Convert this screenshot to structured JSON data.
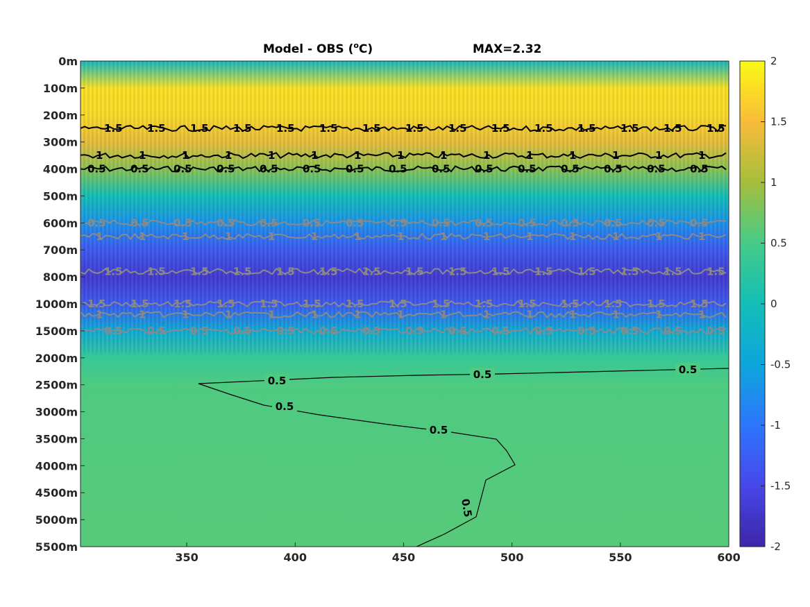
{
  "chart_data": {
    "type": "heatmap",
    "title_left": "Model - OBS (",
    "title_unit_sup": "o",
    "title_unit_end": "C)",
    "title_right": "MAX=2.32",
    "x": {
      "range": [
        301,
        600
      ],
      "ticks": [
        350,
        400,
        450,
        500,
        550,
        600
      ]
    },
    "y": {
      "depth_ticks": [
        "0m",
        "100m",
        "200m",
        "300m",
        "400m",
        "500m",
        "600m",
        "700m",
        "800m",
        "1000m",
        "1500m",
        "2000m",
        "2500m",
        "3000m",
        "3500m",
        "4000m",
        "4500m",
        "5000m",
        "5500m"
      ]
    },
    "colorbar": {
      "range": [
        -2,
        2
      ],
      "ticks": [
        2,
        1.5,
        1,
        0.5,
        0,
        -0.5,
        -1,
        -1.5,
        -2
      ],
      "tick_labels": [
        "2",
        "1.5",
        "1",
        "0.5",
        "0",
        "-0.5",
        "-1",
        "-1.5",
        "-2"
      ],
      "colormap": "parula"
    },
    "field_profile": [
      {
        "depth": "0m",
        "value": -0.1
      },
      {
        "depth": "100m",
        "value": 1.8
      },
      {
        "depth": "200m",
        "value": 1.75
      },
      {
        "depth": "300m",
        "value": 1.4
      },
      {
        "depth": "400m",
        "value": 0.85
      },
      {
        "depth": "500m",
        "value": 0.0
      },
      {
        "depth": "600m",
        "value": -0.7
      },
      {
        "depth": "700m",
        "value": -1.3
      },
      {
        "depth": "800m",
        "value": -1.7
      },
      {
        "depth": "1000m",
        "value": -1.3
      },
      {
        "depth": "1500m",
        "value": -0.4
      },
      {
        "depth": "2000m",
        "value": 0.35
      },
      {
        "depth": "2500m",
        "value": 0.55
      },
      {
        "depth": "5500m",
        "value": 0.6
      }
    ],
    "contours": [
      {
        "level": 0.5,
        "sign": "positive",
        "depth_approx": "400m",
        "label": "0.5"
      },
      {
        "level": 1.0,
        "sign": "positive",
        "depth_approx": "350m",
        "label": "1"
      },
      {
        "level": 1.5,
        "sign": "positive",
        "depth_approx": "250m",
        "label": "1.5"
      },
      {
        "level": -0.5,
        "sign": "negative",
        "depth_approx": "600m",
        "label": "0.5"
      },
      {
        "level": -1.0,
        "sign": "negative",
        "depth_approx": "650m",
        "label": "1"
      },
      {
        "level": -1.5,
        "sign": "negative",
        "depth_approx": "780m",
        "label": "1.5"
      },
      {
        "level": -1.5,
        "sign": "negative",
        "depth_approx": "1000m",
        "label": "1.5"
      },
      {
        "level": -1.0,
        "sign": "negative",
        "depth_approx": "1200m",
        "label": "1"
      },
      {
        "level": -0.5,
        "sign": "negative",
        "depth_approx": "1500m",
        "label": "0.5"
      },
      {
        "level": 0.5,
        "sign": "positive",
        "depth_approx": "2200–4900m",
        "label": "0.5"
      }
    ],
    "colors": {
      "positive_contour": "#000000",
      "negative_contour": "#8a8a8a",
      "axis": "#262626"
    }
  }
}
